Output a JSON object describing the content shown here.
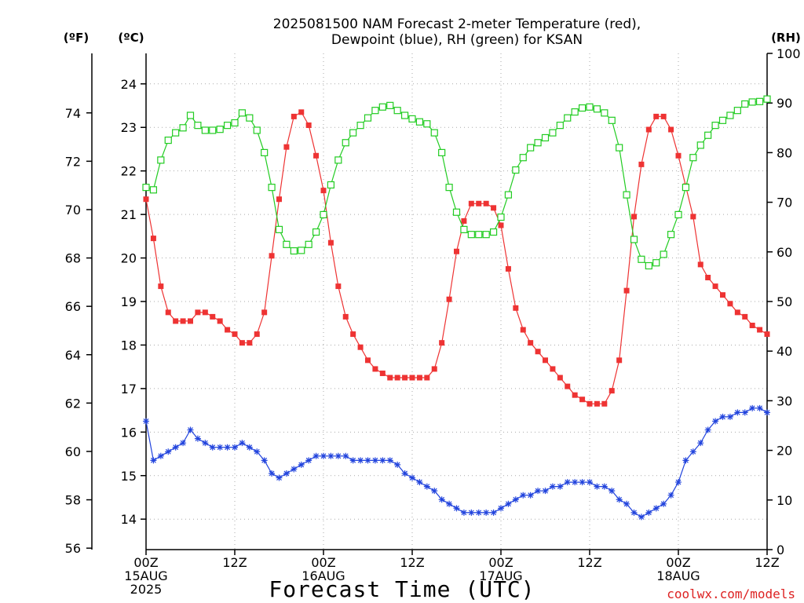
{
  "chart_data": {
    "type": "line",
    "title_lines": [
      "2025081500 NAM Forecast 2-meter Temperature (red),",
      "Dewpoint (blue), RH (green) for KSAN"
    ],
    "xlabel": "Forecast Time (UTC)",
    "credit": "coolwx.com/models",
    "unit_labels": {
      "fahrenheit": "(ºF)",
      "celsius": "(ºC)",
      "rh": "(RH)"
    },
    "x_range_hours": [
      0,
      84
    ],
    "x_ticks": [
      {
        "h": 0,
        "lines": [
          "00Z",
          "15AUG",
          "2025"
        ]
      },
      {
        "h": 12,
        "lines": [
          "12Z"
        ]
      },
      {
        "h": 24,
        "lines": [
          "00Z",
          "16AUG"
        ]
      },
      {
        "h": 36,
        "lines": [
          "12Z"
        ]
      },
      {
        "h": 48,
        "lines": [
          "00Z",
          "17AUG"
        ]
      },
      {
        "h": 60,
        "lines": [
          "12Z"
        ]
      },
      {
        "h": 72,
        "lines": [
          "00Z",
          "18AUG"
        ]
      },
      {
        "h": 84,
        "lines": [
          "12Z"
        ]
      }
    ],
    "celsius_axis": {
      "range": [
        13.3,
        24.7
      ],
      "ticks": [
        14,
        15,
        16,
        17,
        18,
        19,
        20,
        21,
        22,
        23,
        24
      ]
    },
    "fahrenheit_axis": {
      "range": [
        55.94,
        76.46
      ],
      "ticks": [
        56,
        58,
        60,
        62,
        64,
        66,
        68,
        70,
        72,
        74
      ]
    },
    "rh_axis": {
      "range": [
        0,
        100
      ],
      "ticks": [
        0,
        10,
        20,
        30,
        40,
        50,
        60,
        70,
        80,
        90,
        100
      ]
    },
    "grid": true,
    "colors": {
      "temperature": "#ee3333",
      "dewpoint": "#2244dd",
      "rh": "#22cc22"
    },
    "series": [
      {
        "name": "Temperature (red)",
        "unit": "C",
        "marker": "filled-square",
        "x": [
          0,
          1,
          2,
          3,
          4,
          5,
          6,
          7,
          8,
          9,
          10,
          11,
          12,
          13,
          14,
          15,
          16,
          17,
          18,
          19,
          20,
          21,
          22,
          23,
          24,
          25,
          26,
          27,
          28,
          29,
          30,
          31,
          32,
          33,
          34,
          35,
          36,
          37,
          38,
          39,
          40,
          41,
          42,
          43,
          44,
          45,
          46,
          47,
          48,
          49,
          50,
          51,
          52,
          53,
          54,
          55,
          56,
          57,
          58,
          59,
          60,
          61,
          62,
          63,
          64,
          65,
          66,
          67,
          68,
          69,
          70,
          71,
          72,
          73,
          74,
          75,
          76,
          77,
          78,
          79,
          80,
          81,
          82,
          83,
          84
        ],
        "y": [
          21.35,
          20.45,
          19.35,
          18.75,
          18.55,
          18.55,
          18.55,
          18.75,
          18.75,
          18.65,
          18.55,
          18.35,
          18.25,
          18.05,
          18.05,
          18.25,
          18.75,
          20.05,
          21.35,
          22.55,
          23.25,
          23.35,
          23.05,
          22.35,
          21.55,
          20.35,
          19.35,
          18.65,
          18.25,
          17.95,
          17.65,
          17.45,
          17.35,
          17.25,
          17.25,
          17.25,
          17.25,
          17.25,
          17.25,
          17.45,
          18.05,
          19.05,
          20.15,
          20.85,
          21.25,
          21.25,
          21.25,
          21.15,
          20.75,
          19.75,
          18.85,
          18.35,
          18.05,
          17.85,
          17.65,
          17.45,
          17.25,
          17.05,
          16.85,
          16.75,
          16.65,
          16.65,
          16.65,
          16.95,
          17.65,
          19.25,
          20.95,
          22.15,
          22.95,
          23.25,
          23.25,
          22.95,
          22.35,
          21.65,
          20.95,
          19.85,
          19.55,
          19.35,
          19.15,
          18.95,
          18.75,
          18.65,
          18.45,
          18.35,
          18.25
        ]
      },
      {
        "name": "Dewpoint (blue)",
        "unit": "C",
        "marker": "cross",
        "x": [
          0,
          1,
          2,
          3,
          4,
          5,
          6,
          7,
          8,
          9,
          10,
          11,
          12,
          13,
          14,
          15,
          16,
          17,
          18,
          19,
          20,
          21,
          22,
          23,
          24,
          25,
          26,
          27,
          28,
          29,
          30,
          31,
          32,
          33,
          34,
          35,
          36,
          37,
          38,
          39,
          40,
          41,
          42,
          43,
          44,
          45,
          46,
          47,
          48,
          49,
          50,
          51,
          52,
          53,
          54,
          55,
          56,
          57,
          58,
          59,
          60,
          61,
          62,
          63,
          64,
          65,
          66,
          67,
          68,
          69,
          70,
          71,
          72,
          73,
          74,
          75,
          76,
          77,
          78,
          79,
          80,
          81,
          82,
          83,
          84
        ],
        "y": [
          16.25,
          15.35,
          15.45,
          15.55,
          15.65,
          15.75,
          16.05,
          15.85,
          15.75,
          15.65,
          15.65,
          15.65,
          15.65,
          15.75,
          15.65,
          15.55,
          15.35,
          15.05,
          14.95,
          15.05,
          15.15,
          15.25,
          15.35,
          15.45,
          15.45,
          15.45,
          15.45,
          15.45,
          15.35,
          15.35,
          15.35,
          15.35,
          15.35,
          15.35,
          15.25,
          15.05,
          14.95,
          14.85,
          14.75,
          14.65,
          14.45,
          14.35,
          14.25,
          14.15,
          14.15,
          14.15,
          14.15,
          14.15,
          14.25,
          14.35,
          14.45,
          14.55,
          14.55,
          14.65,
          14.65,
          14.75,
          14.75,
          14.85,
          14.85,
          14.85,
          14.85,
          14.75,
          14.75,
          14.65,
          14.45,
          14.35,
          14.15,
          14.05,
          14.15,
          14.25,
          14.35,
          14.55,
          14.85,
          15.35,
          15.55,
          15.75,
          16.05,
          16.25,
          16.35,
          16.35,
          16.45,
          16.45,
          16.55,
          16.55,
          16.45
        ]
      },
      {
        "name": "RH (green)",
        "unit": "%",
        "marker": "open-square",
        "x": [
          0,
          1,
          2,
          3,
          4,
          5,
          6,
          7,
          8,
          9,
          10,
          11,
          12,
          13,
          14,
          15,
          16,
          17,
          18,
          19,
          20,
          21,
          22,
          23,
          24,
          25,
          26,
          27,
          28,
          29,
          30,
          31,
          32,
          33,
          34,
          35,
          36,
          37,
          38,
          39,
          40,
          41,
          42,
          43,
          44,
          45,
          46,
          47,
          48,
          49,
          50,
          51,
          52,
          53,
          54,
          55,
          56,
          57,
          58,
          59,
          60,
          61,
          62,
          63,
          64,
          65,
          66,
          67,
          68,
          69,
          70,
          71,
          72,
          73,
          74,
          75,
          76,
          77,
          78,
          79,
          80,
          81,
          82,
          83,
          84
        ],
        "y": [
          73,
          72.5,
          78.5,
          82.5,
          84,
          85,
          87.5,
          85.5,
          84.5,
          84.5,
          84.7,
          85.5,
          86,
          88,
          87,
          84.5,
          80,
          73,
          64.5,
          61.5,
          60.2,
          60.3,
          61.5,
          64,
          67.5,
          73.5,
          78.5,
          82,
          84,
          85.5,
          87,
          88.5,
          89.2,
          89.5,
          88.5,
          87.5,
          86.8,
          86.2,
          85.8,
          84,
          80,
          73,
          68,
          64.5,
          63.5,
          63.5,
          63.5,
          64,
          67,
          71.5,
          76.5,
          79,
          81,
          82,
          83,
          84,
          85.5,
          87,
          88.2,
          89,
          89.2,
          88.8,
          88,
          86.5,
          81,
          71.5,
          62.5,
          58.5,
          57.2,
          57.8,
          59.5,
          63.5,
          67.5,
          73,
          79,
          81.5,
          83.5,
          85.5,
          86.5,
          87.5,
          88.5,
          89.8,
          90.2,
          90.3,
          90.8
        ]
      }
    ]
  }
}
